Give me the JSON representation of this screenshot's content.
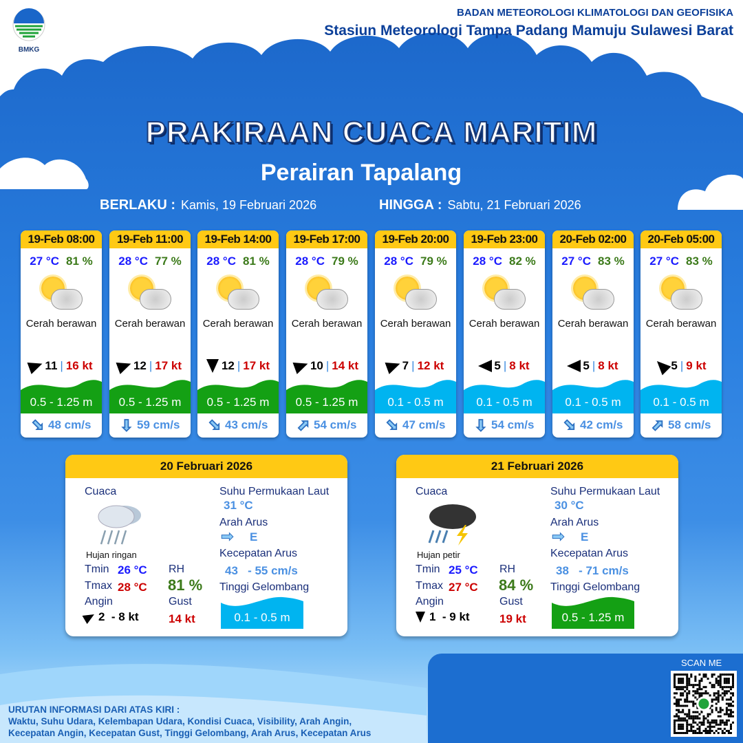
{
  "header": {
    "logo_text": "BMKG",
    "org": "BADAN METEOROLOGI KLIMATOLOGI DAN GEOFISIKA",
    "station": "Stasiun Meteorologi Tampa Padang Mamuju Sulawesi Barat"
  },
  "title": "PRAKIRAAN CUACA MARITIM",
  "subtitle": "Perairan Tapalang",
  "validity": {
    "from_label": "BERLAKU :",
    "from": "Kamis, 19 Februari 2026",
    "to_label": "HINGGA :",
    "to": "Sabtu, 21 Februari 2026"
  },
  "colors": {
    "header_yellow": "#ffc914",
    "wave_green": "#14a014",
    "wave_cyan": "#00b4f0",
    "temp_blue": "#1a1aff",
    "gust_red": "#cc0000",
    "rh_green": "#3c7a1a"
  },
  "forecasts": [
    {
      "time": "19-Feb 08:00",
      "temp": "27 °C",
      "rh": "81 %",
      "icon": "partly-cloudy-icon",
      "condition": "Cerah berawan",
      "wind_dir_deg": 70,
      "wind": "11",
      "sep": "|",
      "gust": "16 kt",
      "wave": "0.5 - 1.25 m",
      "wave_color": "#14a014",
      "current_dir_deg": 135,
      "current": "48 cm/s"
    },
    {
      "time": "19-Feb 11:00",
      "temp": "28 °C",
      "rh": "77 %",
      "icon": "partly-cloudy-icon",
      "condition": "Cerah berawan",
      "wind_dir_deg": 70,
      "wind": "12",
      "sep": "|",
      "gust": "17 kt",
      "wave": "0.5 - 1.25 m",
      "wave_color": "#14a014",
      "current_dir_deg": 180,
      "current": "59 cm/s"
    },
    {
      "time": "19-Feb 14:00",
      "temp": "28 °C",
      "rh": "81 %",
      "icon": "partly-cloudy-icon",
      "condition": "Cerah berawan",
      "wind_dir_deg": 180,
      "wind": "12",
      "sep": "|",
      "gust": "17 kt",
      "wave": "0.5 - 1.25 m",
      "wave_color": "#14a014",
      "current_dir_deg": 135,
      "current": "43 cm/s"
    },
    {
      "time": "19-Feb 17:00",
      "temp": "28 °C",
      "rh": "79 %",
      "icon": "partly-cloudy-icon",
      "condition": "Cerah berawan",
      "wind_dir_deg": 70,
      "wind": "10",
      "sep": "|",
      "gust": "14 kt",
      "wave": "0.5 - 1.25 m",
      "wave_color": "#14a014",
      "current_dir_deg": 45,
      "current": "54 cm/s"
    },
    {
      "time": "19-Feb 20:00",
      "temp": "28 °C",
      "rh": "79 %",
      "icon": "partly-cloudy-icon",
      "condition": "Cerah berawan",
      "wind_dir_deg": 70,
      "wind": "7",
      "sep": "|",
      "gust": "12 kt",
      "wave": "0.1 - 0.5 m",
      "wave_color": "#00b4f0",
      "current_dir_deg": 135,
      "current": "47 cm/s"
    },
    {
      "time": "19-Feb 23:00",
      "temp": "28 °C",
      "rh": "82 %",
      "icon": "partly-cloudy-icon",
      "condition": "Cerah berawan",
      "wind_dir_deg": 270,
      "wind": "5",
      "sep": "|",
      "gust": "8 kt",
      "wave": "0.1 - 0.5 m",
      "wave_color": "#00b4f0",
      "current_dir_deg": 180,
      "current": "54 cm/s"
    },
    {
      "time": "20-Feb 02:00",
      "temp": "27 °C",
      "rh": "83 %",
      "icon": "partly-cloudy-icon",
      "condition": "Cerah berawan",
      "wind_dir_deg": 270,
      "wind": "5",
      "sep": "|",
      "gust": "8 kt",
      "wave": "0.1 - 0.5 m",
      "wave_color": "#00b4f0",
      "current_dir_deg": 135,
      "current": "42 cm/s"
    },
    {
      "time": "20-Feb 05:00",
      "temp": "27 °C",
      "rh": "83 %",
      "icon": "partly-cloudy-icon",
      "condition": "Cerah berawan",
      "wind_dir_deg": 315,
      "wind": "5",
      "sep": "|",
      "gust": "9 kt",
      "wave": "0.1 - 0.5 m",
      "wave_color": "#00b4f0",
      "current_dir_deg": 45,
      "current": "58 cm/s"
    }
  ],
  "daily": [
    {
      "date": "20 Februari 2026",
      "weather_label": "Cuaca",
      "icon": "light-rain-icon",
      "condition": "Hujan ringan",
      "tmin_label": "Tmin",
      "tmin": "26 °C",
      "tmax_label": "Tmax",
      "tmax": "28 °C",
      "rh_label": "RH",
      "rh": "81 %",
      "wind_label": "Angin",
      "wind_dir_deg": 60,
      "wind": "2  - 8 kt",
      "gust_label": "Gust",
      "gust": "14 kt",
      "sst_label": "Suhu Permukaan Laut",
      "sst": "31 °C",
      "cur_dir_label": "Arah Arus",
      "cur_dir": "E",
      "cur_speed_label": "Kecepatan Arus",
      "cur_speed": "43   - 55 cm/s",
      "wave_label": "Tinggi Gelombang",
      "wave": "0.1 - 0.5 m",
      "wave_color": "#00b4f0"
    },
    {
      "date": "21 Februari 2026",
      "weather_label": "Cuaca",
      "icon": "thunderstorm-icon",
      "condition": "Hujan petir",
      "tmin_label": "Tmin",
      "tmin": "25 °C",
      "tmax_label": "Tmax",
      "tmax": "27 °C",
      "rh_label": "RH",
      "rh": "84 %",
      "wind_label": "Angin",
      "wind_dir_deg": 180,
      "wind": "1  - 9 kt",
      "gust_label": "Gust",
      "gust": "19 kt",
      "sst_label": "Suhu Permukaan Laut",
      "sst": "30 °C",
      "cur_dir_label": "Arah Arus",
      "cur_dir": "E",
      "cur_speed_label": "Kecepatan Arus",
      "cur_speed": "38   - 71 cm/s",
      "wave_label": "Tinggi Gelombang",
      "wave": "0.5 - 1.25 m",
      "wave_color": "#14a014"
    }
  ],
  "footer": {
    "info_title": "URUTAN INFORMASI DARI ATAS KIRI :",
    "info_line1": "Waktu, Suhu Udara, Kelembapan Udara, Kondisi Cuaca, Visibility, Arah Angin,",
    "info_line2": "Kecepatan Angin, Kecepatan Gust, Tinggi Gelombang, Arah Arus, Kecepatan Arus",
    "scan_label": "SCAN ME"
  }
}
